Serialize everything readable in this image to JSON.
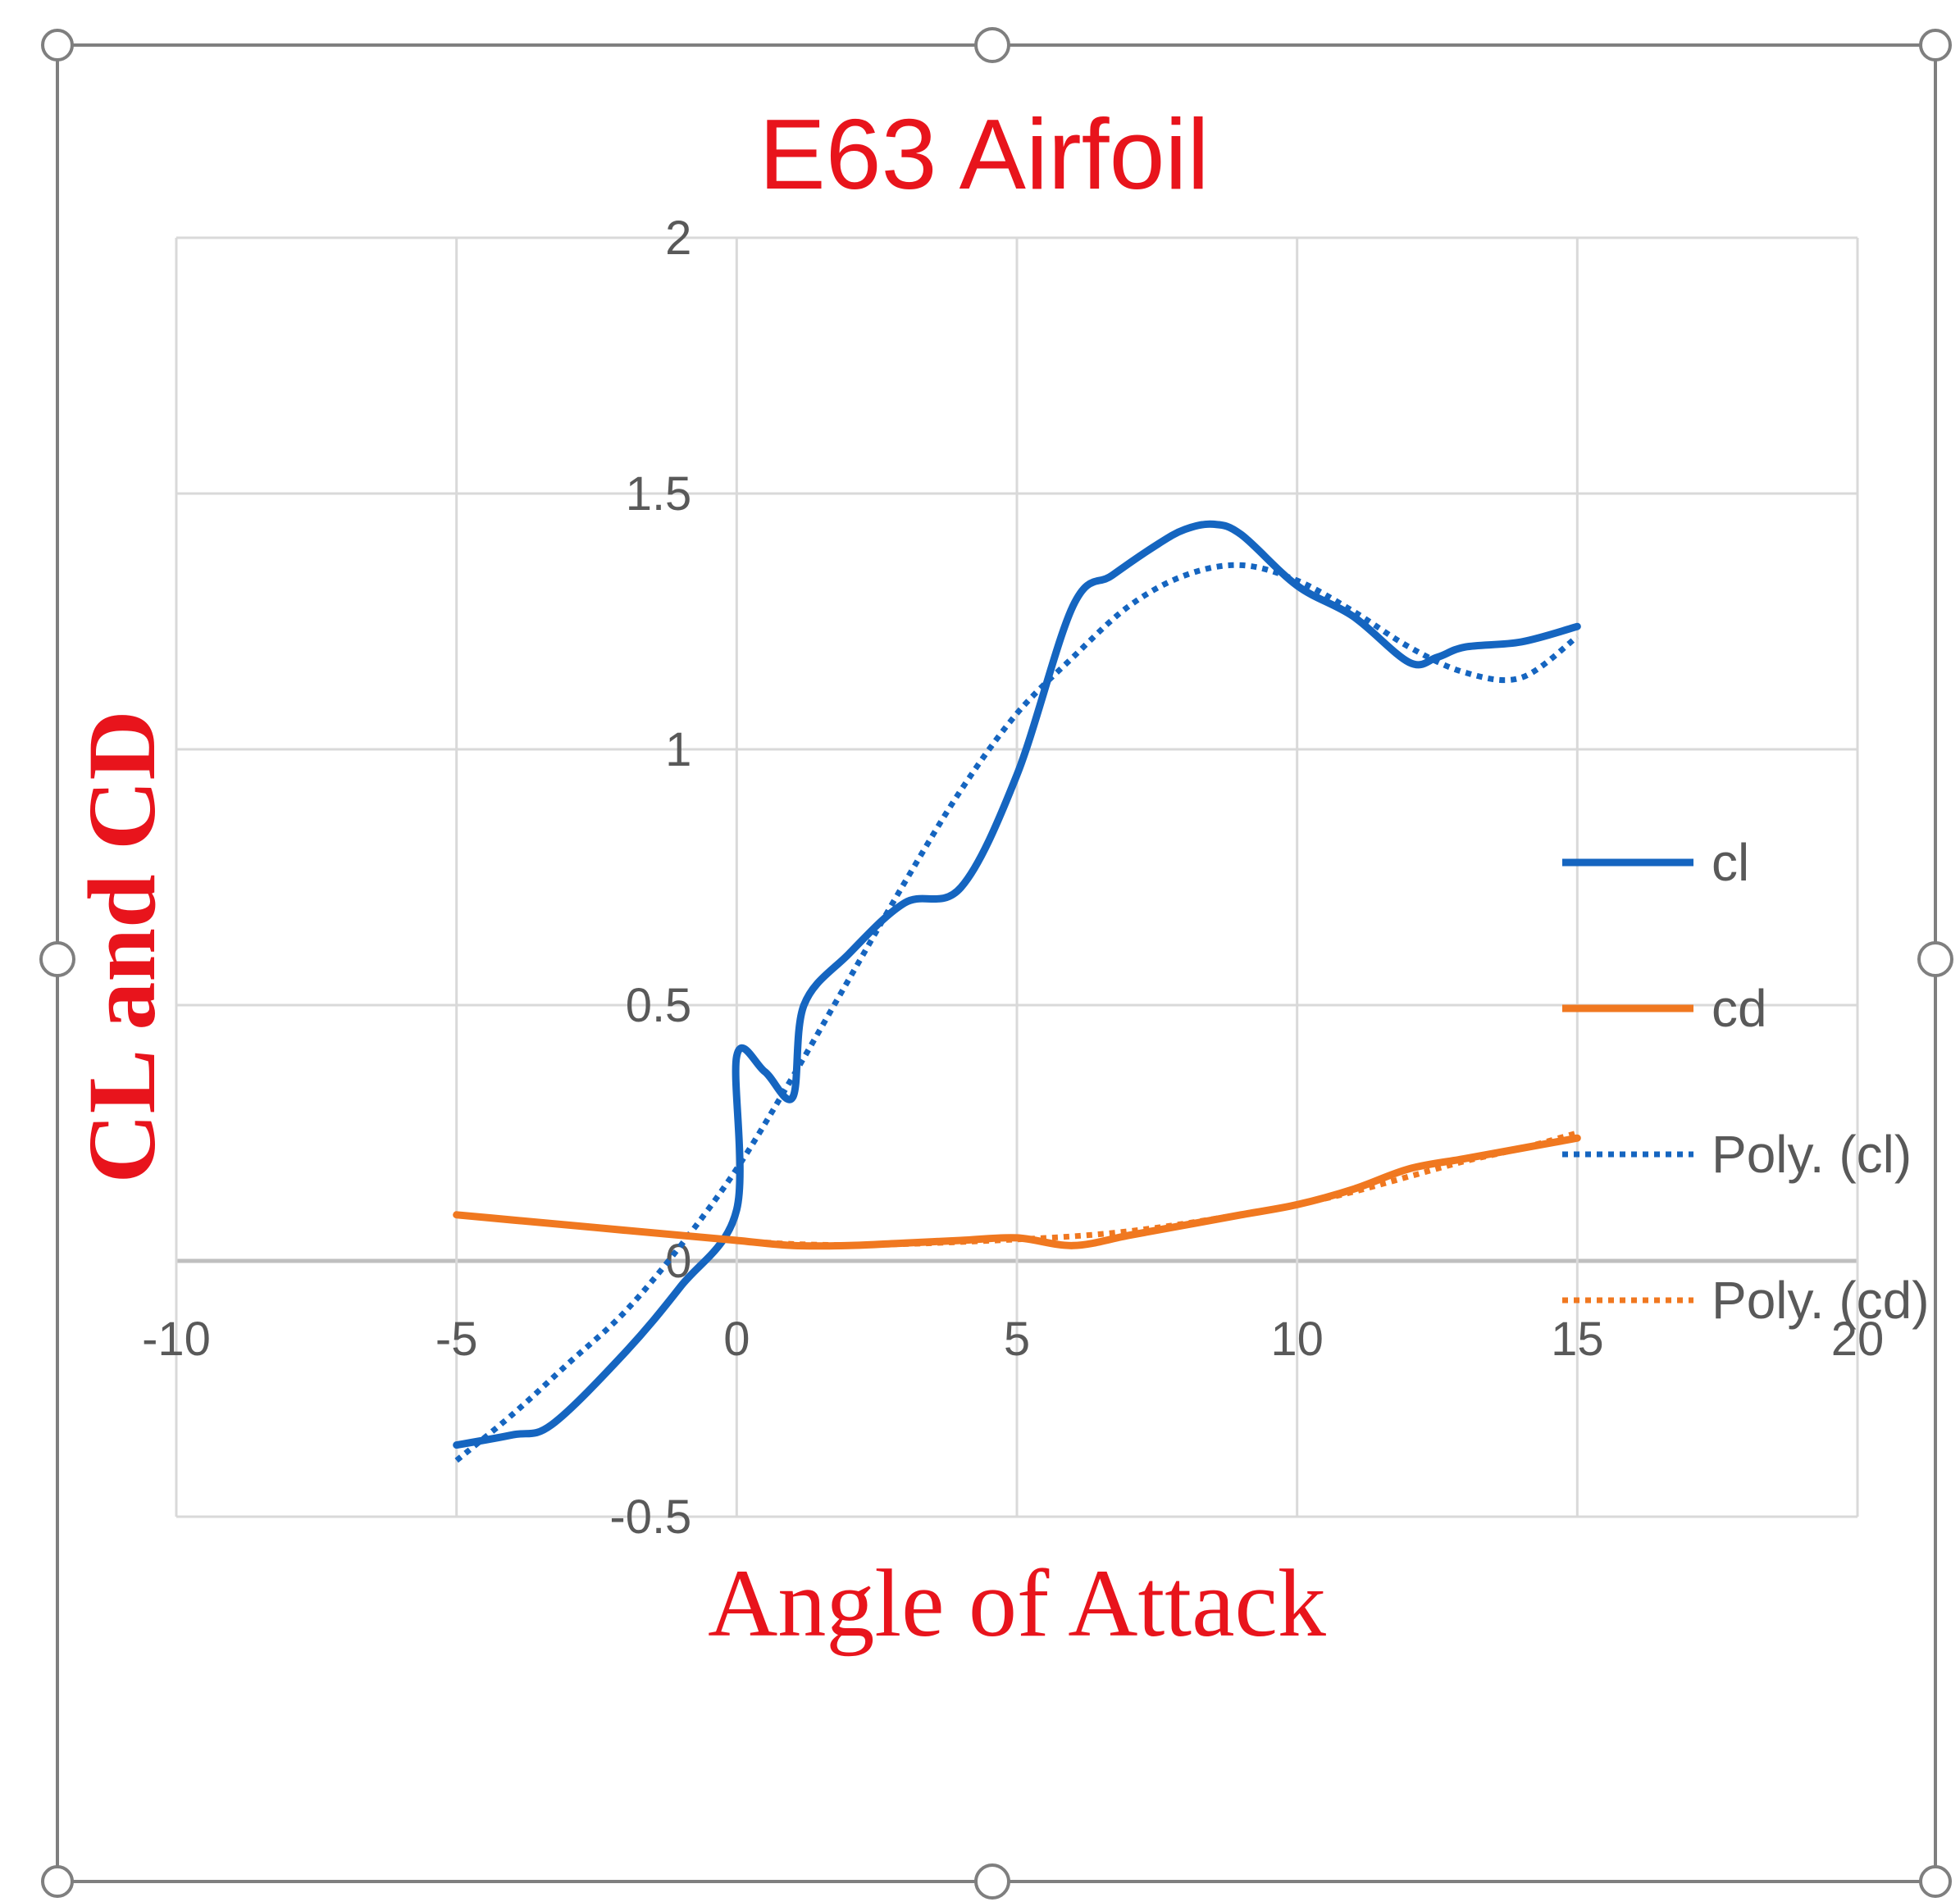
{
  "chart_data": {
    "type": "line",
    "title": "E63 Airfoil",
    "xlabel": "Angle of Attack",
    "ylabel": "CL and CD",
    "xlim": [
      -10,
      20
    ],
    "ylim": [
      -0.5,
      2
    ],
    "x_ticks": [
      "-10",
      "-5",
      "0",
      "5",
      "10",
      "15",
      "20"
    ],
    "y_ticks": [
      "-0.5",
      "0",
      "0.5",
      "1",
      "1.5",
      "2"
    ],
    "grid": true,
    "legend_position": "right",
    "series": [
      {
        "name": "cl",
        "style": "solid",
        "color": "#1565C0",
        "x": [
          -5,
          -4,
          -3.3,
          -2,
          -1,
          0,
          0,
          0.5,
          1,
          1.2,
          2,
          3,
          4,
          5,
          6,
          6.7,
          7.5,
          8,
          8.5,
          9,
          10,
          11,
          12,
          12.5,
          13,
          14,
          15
        ],
        "y": [
          -0.36,
          -0.34,
          -0.32,
          -0.18,
          -0.05,
          0.1,
          0.4,
          0.37,
          0.32,
          0.5,
          0.6,
          0.7,
          0.73,
          0.95,
          1.28,
          1.34,
          1.4,
          1.43,
          1.44,
          1.42,
          1.32,
          1.26,
          1.17,
          1.18,
          1.2,
          1.21,
          1.24
        ]
      },
      {
        "name": "cd",
        "style": "solid",
        "color": "#F07820",
        "x": [
          -5,
          -4,
          -3,
          -2,
          -1,
          0,
          1,
          2,
          3,
          4,
          5,
          6,
          7,
          8,
          9,
          10,
          11,
          12,
          13,
          14,
          15
        ],
        "y": [
          0.09,
          0.08,
          0.07,
          0.06,
          0.05,
          0.04,
          0.03,
          0.03,
          0.035,
          0.04,
          0.045,
          0.03,
          0.05,
          0.07,
          0.09,
          0.11,
          0.14,
          0.18,
          0.2,
          0.22,
          0.24
        ]
      },
      {
        "name": "Poly. (cl)",
        "style": "dotted",
        "color": "#1565C0",
        "x": [
          -5,
          -4,
          -3,
          -2,
          -1,
          0,
          1,
          2,
          3,
          4,
          5,
          6,
          7,
          8,
          9,
          10,
          11,
          12,
          13,
          14,
          15
        ],
        "y": [
          -0.39,
          -0.3,
          -0.2,
          -0.1,
          0.03,
          0.18,
          0.36,
          0.55,
          0.74,
          0.92,
          1.07,
          1.18,
          1.28,
          1.34,
          1.36,
          1.33,
          1.27,
          1.2,
          1.15,
          1.14,
          1.22
        ]
      },
      {
        "name": "Poly. (cd)",
        "style": "dotted",
        "color": "#F07820",
        "x": [
          -5,
          -4,
          -3,
          -2,
          -1,
          0,
          1,
          2,
          3,
          4,
          5,
          6,
          7,
          8,
          9,
          10,
          11,
          12,
          13,
          14,
          15
        ],
        "y": [
          0.09,
          0.08,
          0.07,
          0.06,
          0.05,
          0.04,
          0.033,
          0.031,
          0.033,
          0.037,
          0.042,
          0.048,
          0.058,
          0.073,
          0.091,
          0.11,
          0.135,
          0.165,
          0.195,
          0.22,
          0.25
        ]
      }
    ],
    "colors": {
      "title": "#E8141C",
      "axis_titles": "#E8141C",
      "grid": "#D9D9D9",
      "zero_axis": "#BFBFBF",
      "frame": "#7F7F7F"
    }
  }
}
